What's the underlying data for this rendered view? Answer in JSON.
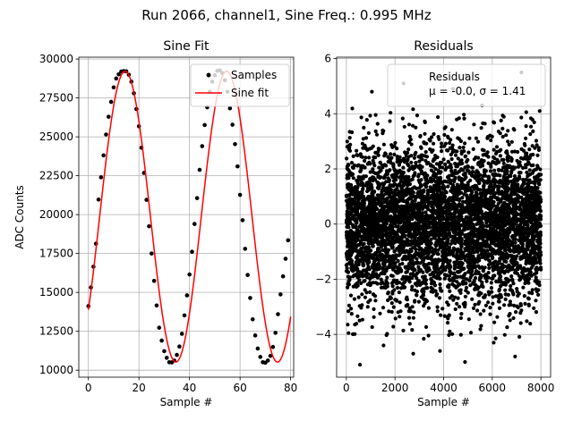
{
  "figure": {
    "suptitle": "Run 2066, channel1, Sine Freq.: 0.995 MHz"
  },
  "chart_data": [
    {
      "type": "line",
      "title": "Sine Fit",
      "xlabel": "Sample #",
      "ylabel": "ADC Counts",
      "xlim": [
        -3.8,
        81.2
      ],
      "ylim": [
        9550,
        30120
      ],
      "xticks": [
        0,
        20,
        40,
        60,
        80
      ],
      "yticks": [
        10000,
        12500,
        15000,
        17500,
        20000,
        22500,
        25000,
        27500,
        30000
      ],
      "grid": true,
      "legend_position": "top-right",
      "model": {
        "offset": 19870,
        "amplitude": 9350,
        "period": 40.2,
        "peak_x": 14.5
      },
      "series": [
        {
          "name": "Samples",
          "kind": "scatter",
          "color": "#000000",
          "x": [
            0,
            1,
            2,
            3,
            4,
            5,
            6,
            7,
            8,
            9,
            10,
            11,
            12,
            13,
            14,
            15,
            16,
            17,
            18,
            19,
            20,
            21,
            22,
            23,
            24,
            25,
            26,
            27,
            28,
            29,
            30,
            31,
            32,
            33,
            34,
            35,
            36,
            37,
            38,
            39,
            40,
            41,
            42,
            43,
            44,
            45,
            46,
            47,
            48,
            49,
            50,
            51,
            52,
            53,
            54,
            55,
            56,
            57,
            58,
            59,
            60,
            61,
            62,
            63,
            64,
            65,
            66,
            67,
            68,
            69,
            70,
            71,
            72,
            73,
            74,
            75,
            76,
            77,
            78,
            79
          ],
          "y": [
            14120,
            15320,
            16650,
            18130,
            20970,
            22400,
            23810,
            25150,
            26290,
            27250,
            28180,
            28750,
            29020,
            29200,
            29230,
            29210,
            28990,
            28550,
            27800,
            26790,
            25680,
            24300,
            22680,
            20950,
            19250,
            17500,
            15740,
            14160,
            12730,
            11900,
            11220,
            10790,
            10510,
            10500,
            10620,
            10980,
            11520,
            12340,
            13520,
            14810,
            16150,
            17610,
            19400,
            21060,
            22880,
            24400,
            25760,
            26900,
            27900,
            28550,
            28960,
            29250,
            29270,
            29100,
            28640,
            27900,
            26830,
            25780,
            24530,
            23100,
            21270,
            19640,
            17800,
            16120,
            14640,
            13270,
            12230,
            11390,
            10850,
            10510,
            10480,
            10620,
            10920,
            11490,
            12400,
            13600,
            14870,
            16030,
            17160,
            18350
          ]
        },
        {
          "name": "Sine fit",
          "kind": "line",
          "color": "#ff0000"
        }
      ]
    },
    {
      "type": "scatter",
      "title": "Residuals",
      "xlabel": "Sample #",
      "ylabel": "",
      "xlim": [
        -400,
        8400
      ],
      "ylim": [
        -5.55,
        6.05
      ],
      "xticks": [
        0,
        2000,
        4000,
        6000,
        8000
      ],
      "yticks": [
        -4,
        -2,
        0,
        2,
        4,
        6
      ],
      "grid": true,
      "legend_position": "top-right",
      "series": [
        {
          "name": "Residuals",
          "color": "#000000",
          "count": 8000,
          "mu": -0.0,
          "sigma": 1.41,
          "outliers": [
            [
              2350,
              5.1
            ],
            [
              7200,
              5.5
            ],
            [
              4920,
              5.4
            ],
            [
              4390,
              4.9
            ],
            [
              1050,
              4.8
            ],
            [
              560,
              -5.1
            ],
            [
              4880,
              -5.0
            ],
            [
              2750,
              -4.7
            ],
            [
              6940,
              -4.8
            ],
            [
              3850,
              -4.6
            ],
            [
              1530,
              -4.4
            ],
            [
              7950,
              4.1
            ],
            [
              6060,
              -4.3
            ],
            [
              5580,
              4.3
            ]
          ]
        }
      ],
      "legend_stat_text": "μ = -0.0, σ = 1.41"
    }
  ]
}
